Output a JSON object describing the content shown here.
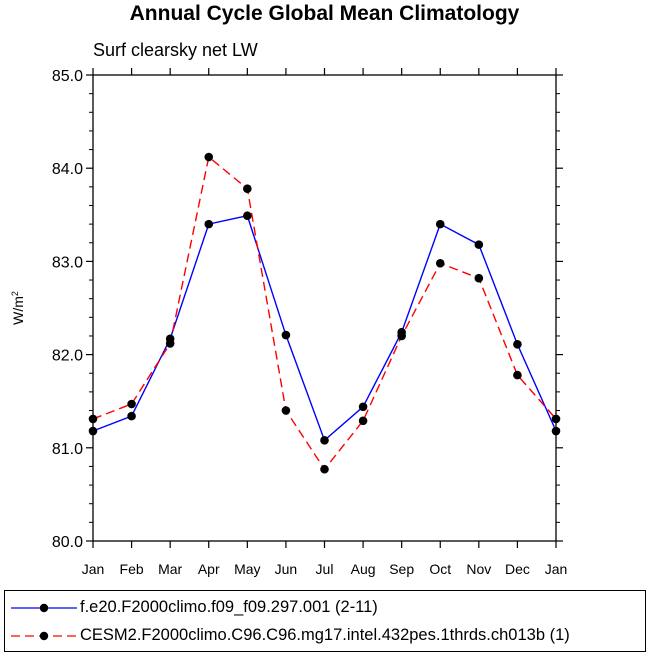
{
  "chart_data": {
    "type": "line",
    "title": "Annual Cycle Global Mean Climatology",
    "subtitle": "Surf clearsky net LW",
    "ylabel": "W/m",
    "ylabel_sup": "2",
    "xlabel": "",
    "ylim": [
      80.0,
      85.0
    ],
    "yticks": [
      "80.0",
      "81.0",
      "82.0",
      "83.0",
      "84.0",
      "85.0"
    ],
    "categories": [
      "Jan",
      "Feb",
      "Mar",
      "Apr",
      "May",
      "Jun",
      "Jul",
      "Aug",
      "Sep",
      "Oct",
      "Nov",
      "Dec",
      "Jan"
    ],
    "series": [
      {
        "name": "f.e20.F2000climo.f09_f09.297.001 (2-11)",
        "color": "#0000ff",
        "dash": "solid",
        "values": [
          81.18,
          81.34,
          82.17,
          83.4,
          83.49,
          82.21,
          81.08,
          81.44,
          82.24,
          83.4,
          83.18,
          82.11,
          81.18
        ]
      },
      {
        "name": "CESM2.F2000climo.C96.C96.mg17.intel.432pes.1thrds.ch013b (1)",
        "color": "#ff0000",
        "dash": "dashed",
        "values": [
          81.31,
          81.47,
          82.12,
          84.12,
          83.78,
          81.4,
          80.77,
          81.29,
          82.2,
          82.98,
          82.82,
          81.78,
          81.31
        ]
      }
    ]
  }
}
